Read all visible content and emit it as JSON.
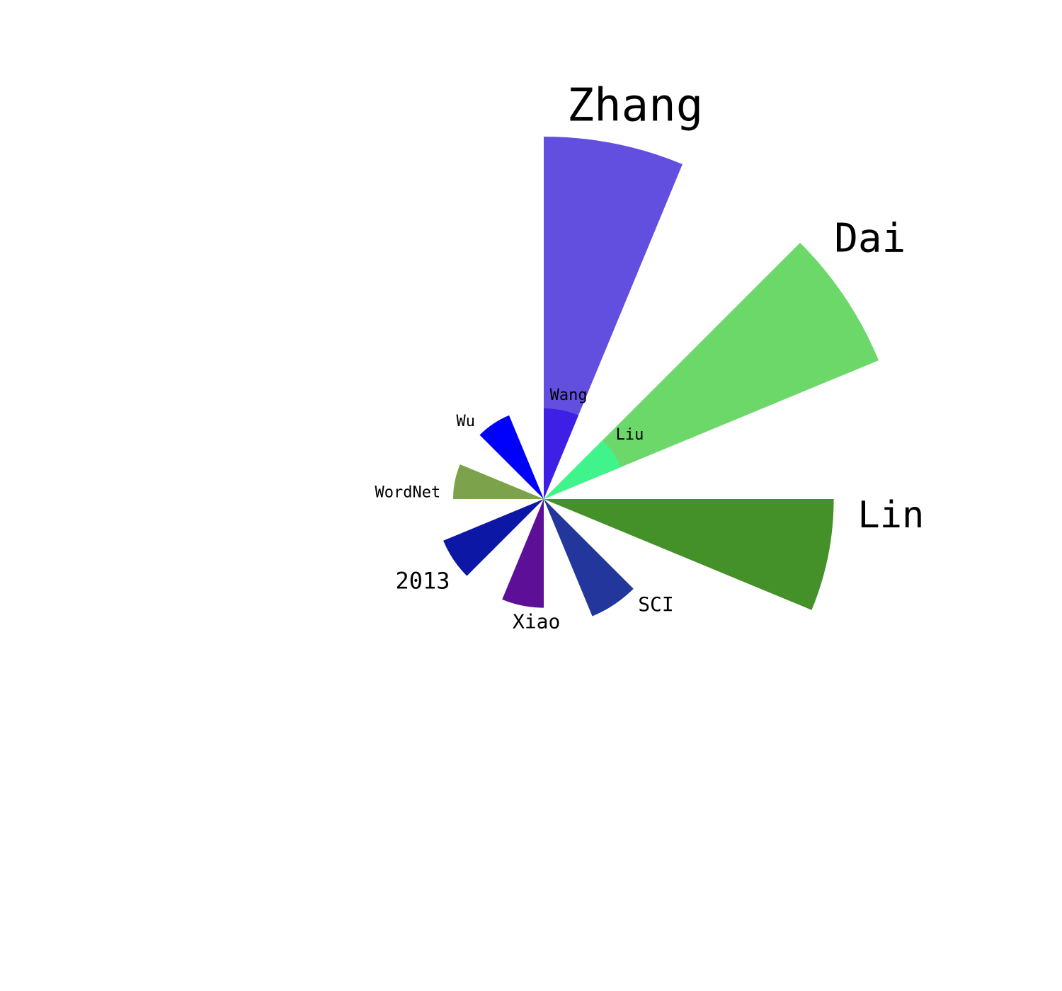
{
  "chart_data": {
    "type": "nightingale-rose",
    "title": "",
    "categories": [
      "Zhang",
      "Dai",
      "Lin",
      "SCI",
      "Xiao",
      "2013",
      "WordNet",
      "Wu",
      "Wang",
      "Liu"
    ],
    "values": [
      100,
      100,
      80,
      35,
      30,
      30,
      25,
      25,
      25,
      23
    ],
    "colors": [
      "#624fe0",
      "#6cd86a",
      "#449029",
      "#22369b",
      "#5d1097",
      "#0d17a5",
      "#7ca34b",
      "#0000fd",
      "#3d1fe6",
      "#40f48b"
    ],
    "label_sizes": [
      64,
      56,
      52,
      28,
      28,
      32,
      22,
      22,
      22,
      22
    ],
    "start_angle_deg": 0,
    "sector_span_deg": 22.5,
    "legend": "none",
    "grid": false
  }
}
